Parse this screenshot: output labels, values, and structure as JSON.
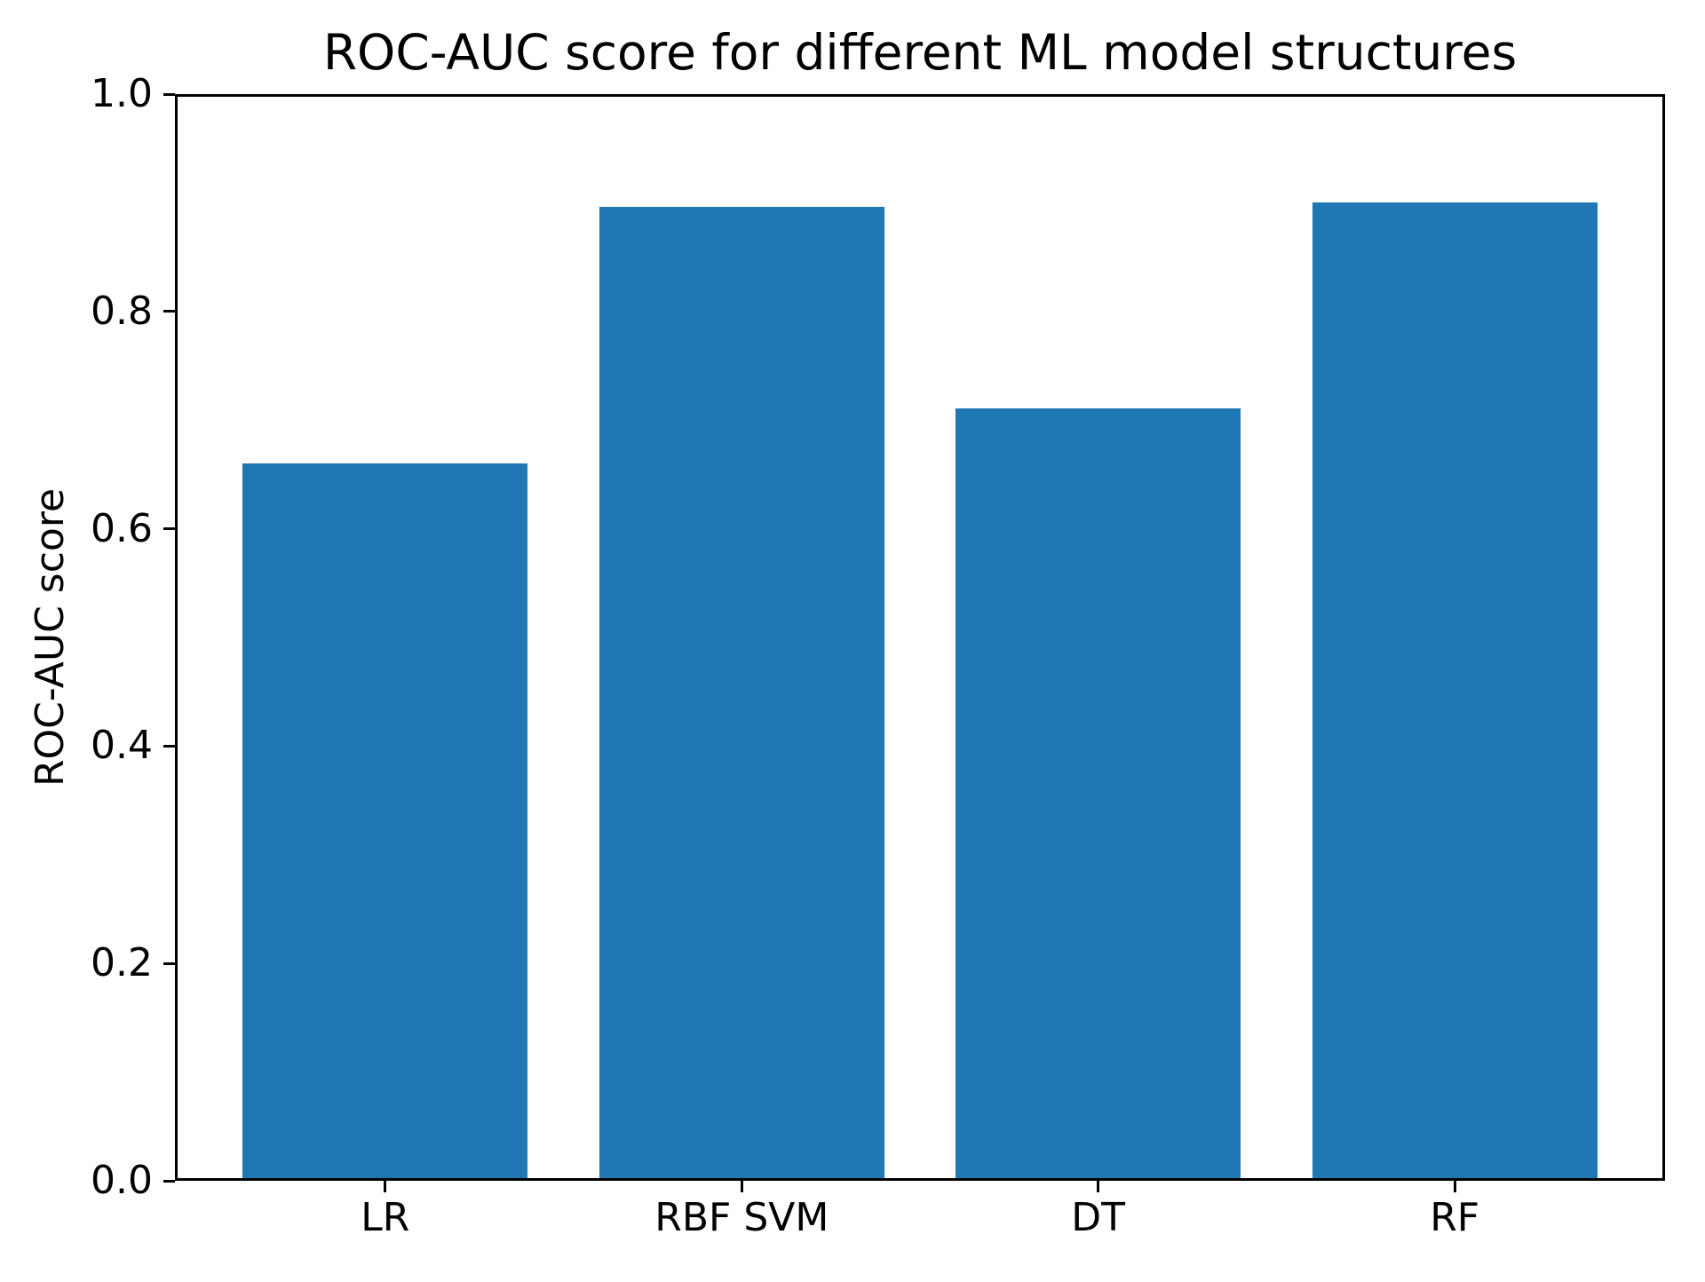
{
  "chart_data": {
    "type": "bar",
    "title": "ROC-AUC score for different ML model structures",
    "xlabel": "",
    "ylabel": "ROC-AUC score",
    "categories": [
      "LR",
      "RBF SVM",
      "DT",
      "RF"
    ],
    "values": [
      0.66,
      0.896,
      0.711,
      0.9
    ],
    "ylim": [
      0.0,
      1.0
    ],
    "ytick_values": [
      0.0,
      0.2,
      0.4,
      0.6,
      0.8,
      1.0
    ],
    "ytick_labels": [
      "0.0",
      "0.2",
      "0.4",
      "0.6",
      "0.8",
      "1.0"
    ],
    "grid": false,
    "legend": false,
    "bar_color": "#1f77b4",
    "axis_color": "#000000",
    "text_color": "#000000",
    "background_color": "#ffffff"
  }
}
